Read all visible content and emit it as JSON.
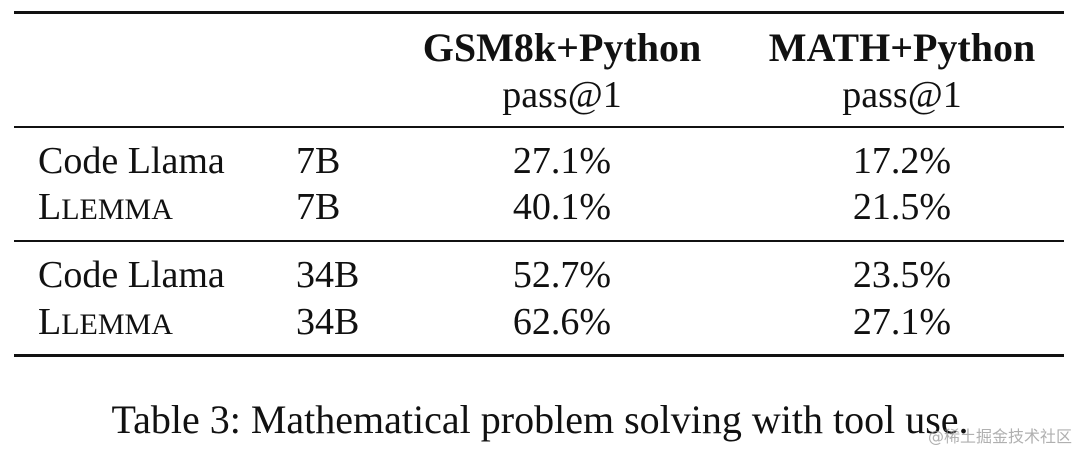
{
  "table": {
    "columns": [
      {
        "header": "GSM8k+Python",
        "sub": "pass@1"
      },
      {
        "header": "MATH+Python",
        "sub": "pass@1"
      }
    ],
    "rows": [
      {
        "model": "Code Llama",
        "size": "7B",
        "gsm": "27.1%",
        "math": "17.2%"
      },
      {
        "model": "LLEMMA",
        "size": "7B",
        "gsm": "40.1%",
        "math": "21.5%"
      },
      {
        "model": "Code Llama",
        "size": "34B",
        "gsm": "52.7%",
        "math": "23.5%"
      },
      {
        "model": "LLEMMA",
        "size": "34B",
        "gsm": "62.6%",
        "math": "27.1%"
      }
    ]
  },
  "caption": "Table 3: Mathematical problem solving with tool use.",
  "watermark": "@稀土掘金技术社区",
  "chart_data": {
    "type": "table",
    "columns": [
      "",
      "",
      "GSM8k+Python pass@1",
      "MATH+Python pass@1"
    ],
    "rows": [
      [
        "Code Llama",
        "7B",
        "27.1%",
        "17.2%"
      ],
      [
        "LLEMMA",
        "7B",
        "40.1%",
        "21.5%"
      ],
      [
        "Code Llama",
        "34B",
        "52.7%",
        "23.5%"
      ],
      [
        "LLEMMA",
        "34B",
        "62.6%",
        "27.1%"
      ]
    ]
  }
}
